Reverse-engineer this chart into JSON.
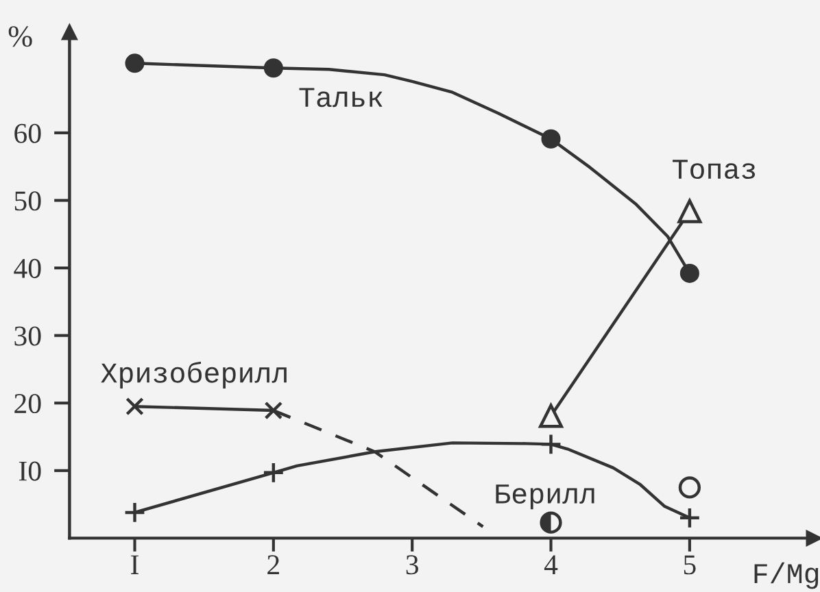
{
  "chart_data": {
    "type": "line",
    "xlabel": "F/Mg",
    "ylabel": "%",
    "xlim": [
      0.53,
      5.9
    ],
    "ylim": [
      0,
      75
    ],
    "xticks": [
      {
        "value": 1,
        "label": "I"
      },
      2,
      3,
      4,
      5
    ],
    "yticks": [
      {
        "value": 10,
        "label": "I0"
      },
      20,
      30,
      40,
      50,
      60
    ],
    "grid": false,
    "legend": false,
    "series": [
      {
        "color": "#333333",
        "x": [
          1,
          2,
          2.4,
          2.8,
          3.0,
          3.29,
          3.62,
          4,
          4.28,
          4.61,
          4.84,
          5
        ],
        "values": [
          70.3,
          69.6,
          69.4,
          68.6,
          67.6,
          66.0,
          62.9,
          59.1,
          54.9,
          49.5,
          44.7,
          39.2
        ],
        "marker": "none",
        "line_style": "solid"
      },
      {
        "name": "Тальк",
        "type": "scatter",
        "color": "#333333",
        "x": [
          1,
          2,
          4,
          5
        ],
        "values": [
          70.3,
          69.6,
          59.1,
          39.2
        ],
        "marker": "circle"
      },
      {
        "name": "Топаз",
        "color": "#333333",
        "x": [
          4,
          5
        ],
        "values": [
          18.1,
          48.4
        ],
        "marker": "triangle",
        "line_style": "solid"
      },
      {
        "name": "Хризоберилл",
        "color": "#333333",
        "x": [
          1,
          2
        ],
        "values": [
          19.5,
          18.9
        ],
        "marker": "cross",
        "line_style": "solid"
      },
      {
        "color": "#333333",
        "x": [
          2,
          2.73,
          3.51
        ],
        "values": [
          18.9,
          12.8,
          1.7
        ],
        "marker": "none",
        "line_style": "dashed"
      },
      {
        "color": "#333333",
        "x": [
          1,
          2,
          2.17,
          2.73,
          3.29,
          3.82,
          4,
          4.12,
          4.45,
          4.64,
          4.82,
          5
        ],
        "values": [
          3.8,
          9.7,
          10.7,
          12.8,
          14.1,
          14.0,
          13.9,
          13.2,
          10.4,
          8.0,
          4.7,
          3.0
        ],
        "marker": "none",
        "line_style": "solid"
      },
      {
        "type": "scatter",
        "color": "#333333",
        "x": [
          1,
          2,
          4,
          5
        ],
        "values": [
          3.8,
          9.7,
          13.9,
          3.0
        ],
        "marker": "plus"
      },
      {
        "name": "Берилл",
        "type": "scatter",
        "color": "#333333",
        "x": [
          4
        ],
        "values": [
          2.3
        ],
        "marker": "circle"
      },
      {
        "type": "scatter",
        "color": "#333333",
        "x": [
          5
        ],
        "values": [
          7.5
        ],
        "marker": "circle"
      }
    ]
  }
}
